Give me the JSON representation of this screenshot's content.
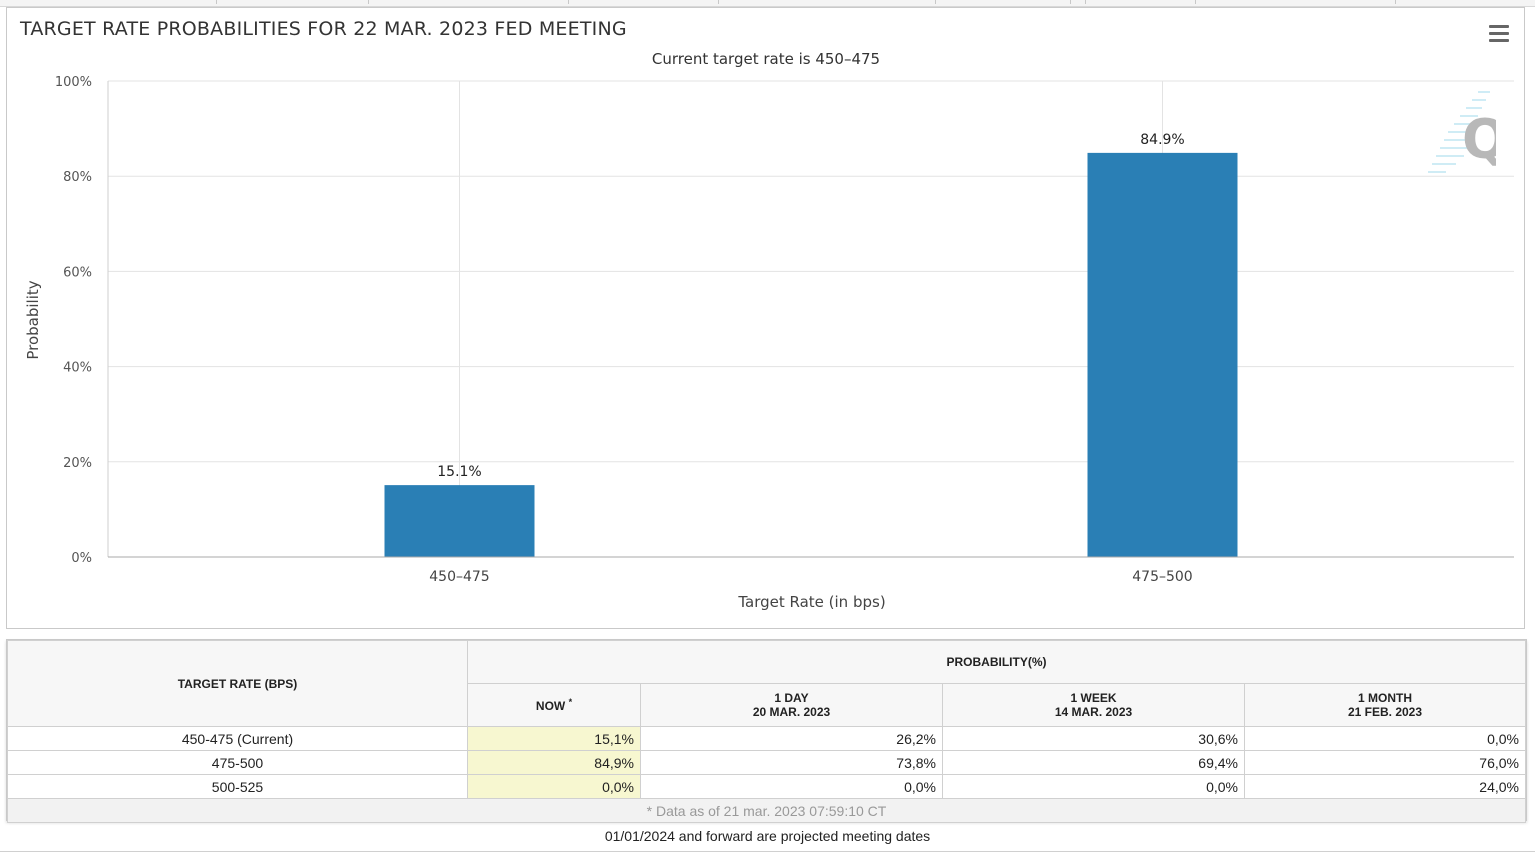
{
  "chart_data": {
    "type": "bar",
    "title": "TARGET RATE PROBABILITIES FOR 22 MAR. 2023 FED MEETING",
    "subtitle": "Current target rate is 450–475",
    "xlabel": "Target Rate (in bps)",
    "ylabel": "Probability",
    "categories": [
      "450–475",
      "475–500"
    ],
    "values": [
      15.1,
      84.9
    ],
    "value_labels": [
      "15.1%",
      "84.9%"
    ],
    "ylim": [
      0,
      100
    ],
    "yticks": [
      0,
      20,
      40,
      60,
      80,
      100
    ],
    "ytick_labels": [
      "0%",
      "20%",
      "40%",
      "60%",
      "80%",
      "100%"
    ],
    "grid": true,
    "bar_color": "#2a7fb5"
  },
  "table": {
    "header_rate": "TARGET RATE (BPS)",
    "header_probability": "PROBABILITY(%)",
    "col_now": "NOW",
    "col_now_mark": "*",
    "col_day": "1 DAY",
    "col_day_date": "20 MAR. 2023",
    "col_week": "1 WEEK",
    "col_week_date": "14 MAR. 2023",
    "col_month": "1 MONTH",
    "col_month_date": "21 FEB. 2023",
    "rows": [
      {
        "rate": "450-475 (Current)",
        "now": "15,1%",
        "day": "26,2%",
        "week": "30,6%",
        "month": "0,0%"
      },
      {
        "rate": "475-500",
        "now": "84,9%",
        "day": "73,8%",
        "week": "69,4%",
        "month": "76,0%"
      },
      {
        "rate": "500-525",
        "now": "0,0%",
        "day": "0,0%",
        "week": "0,0%",
        "month": "24,0%"
      }
    ],
    "note": "* Data as of 21 mar. 2023 07:59:10 CT"
  },
  "footer": {
    "text": "01/01/2024 and forward are projected meeting dates"
  },
  "logo": {
    "letter": "Q"
  }
}
